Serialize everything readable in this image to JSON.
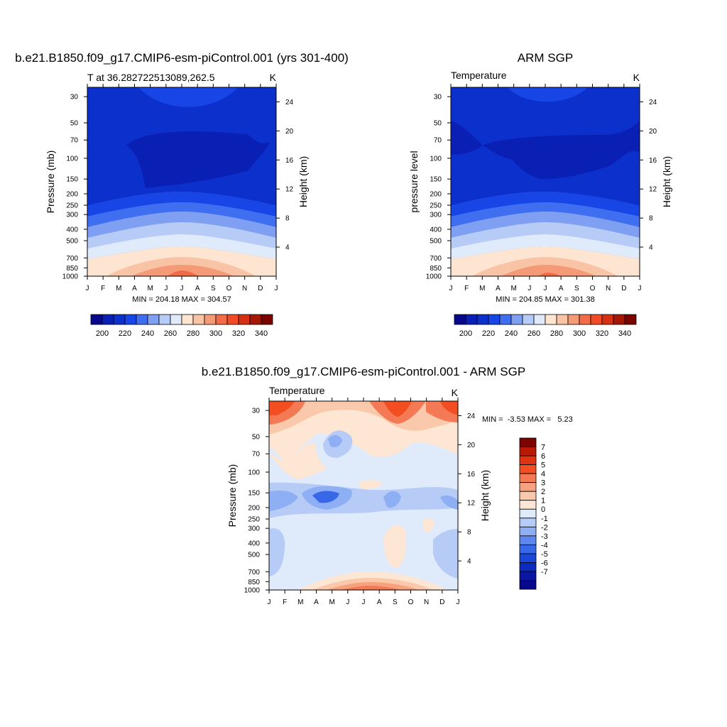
{
  "chart_data": [
    {
      "type": "heatmap",
      "title": "b.e21.B1850.f09_g17.CMIP6-esm-piControl.001 (yrs 301-400)",
      "subtitle_left": "T at 36.282722513089,262.5",
      "subtitle_right": "K",
      "ylabel": "Pressure (mb)",
      "ylabel_right": "Height (km)",
      "x_ticks": [
        "J",
        "F",
        "M",
        "A",
        "M",
        "J",
        "J",
        "A",
        "S",
        "O",
        "N",
        "D",
        "J"
      ],
      "y_ticks": [
        30,
        50,
        70,
        100,
        150,
        200,
        250,
        300,
        400,
        500,
        700,
        850,
        1000
      ],
      "height_ticks": [
        24,
        20,
        16,
        12,
        8,
        4
      ],
      "stats": "MIN = 204.18 MAX = 304.57",
      "colorbar_labels": [
        "200",
        "220",
        "240",
        "260",
        "280",
        "300",
        "320",
        "340"
      ]
    },
    {
      "type": "heatmap",
      "title": "ARM SGP",
      "subtitle_left": "Temperature",
      "subtitle_right": "K",
      "ylabel": "pressure level",
      "ylabel_right": "Height (km)",
      "x_ticks": [
        "J",
        "F",
        "M",
        "A",
        "M",
        "J",
        "J",
        "A",
        "S",
        "O",
        "N",
        "D",
        "J"
      ],
      "y_ticks": [
        30,
        50,
        70,
        100,
        150,
        200,
        250,
        300,
        400,
        500,
        700,
        850,
        1000
      ],
      "height_ticks": [
        24,
        20,
        16,
        12,
        8,
        4
      ],
      "stats": "MIN = 204.85 MAX = 301.38",
      "colorbar_labels": [
        "200",
        "220",
        "240",
        "260",
        "280",
        "300",
        "320",
        "340"
      ]
    },
    {
      "type": "heatmap",
      "title": "b.e21.B1850.f09_g17.CMIP6-esm-piControl.001 - ARM SGP",
      "subtitle_left": "Temperature",
      "subtitle_right": "K",
      "ylabel": "Pressure (mb)",
      "ylabel_right": "Height (km)",
      "x_ticks": [
        "J",
        "F",
        "M",
        "A",
        "M",
        "J",
        "J",
        "A",
        "S",
        "O",
        "N",
        "D",
        "J"
      ],
      "y_ticks": [
        30,
        50,
        70,
        100,
        150,
        200,
        250,
        300,
        400,
        500,
        700,
        850,
        1000
      ],
      "height_ticks": [
        24,
        20,
        16,
        12,
        8,
        4
      ],
      "stats": "MIN =  -3.53 MAX =   5.23",
      "colorbar_labels": [
        "7",
        "6",
        "5",
        "4",
        "3",
        "2",
        "1",
        "0",
        "-1",
        "-2",
        "-3",
        "-4",
        "-5",
        "-6",
        "-7"
      ]
    }
  ],
  "palettes": {
    "absolute": [
      "#08088c",
      "#0a1fb4",
      "#0c30cc",
      "#1846e6",
      "#3f6ff0",
      "#7fa0f2",
      "#b6ccf6",
      "#dfeafb",
      "#fde5d2",
      "#f9c3a6",
      "#f59a76",
      "#f26b47",
      "#f24a26",
      "#d63012",
      "#a51806",
      "#7c0400"
    ],
    "difference": [
      "#7c0400",
      "#b81a06",
      "#e03312",
      "#f24e22",
      "#f47a55",
      "#f7a27f",
      "#fac8aa",
      "#fde6d4",
      "#dfeafb",
      "#b6ccf6",
      "#8faff4",
      "#5e88f0",
      "#3867e8",
      "#1a47d8",
      "#0c2cc0",
      "#0a16a0",
      "#08088c"
    ]
  }
}
